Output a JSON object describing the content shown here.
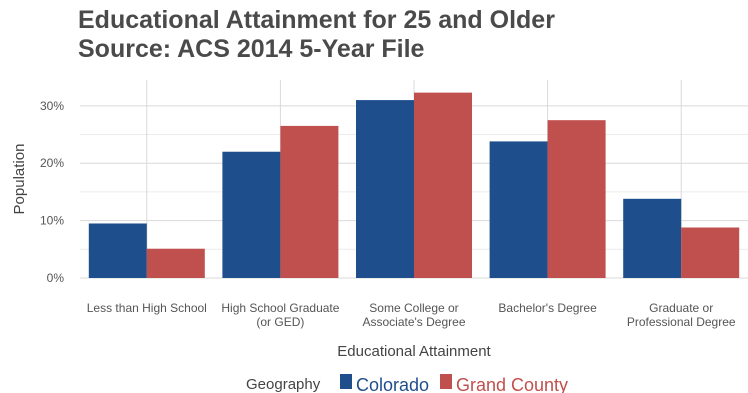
{
  "chart_data": {
    "type": "bar",
    "title": "Educational Attainment for 25 and Older",
    "subtitle": "Source: ACS 2014 5-Year File",
    "xlabel": "Educational Attainment",
    "ylabel": "Population",
    "ylim": [
      0,
      0.345
    ],
    "yticks": [
      {
        "value": 0,
        "label": "0%"
      },
      {
        "value": 0.1,
        "label": "10%"
      },
      {
        "value": 0.2,
        "label": "20%"
      },
      {
        "value": 0.3,
        "label": "30%"
      }
    ],
    "categories": [
      [
        "Less than High School"
      ],
      [
        "High School Graduate",
        "(or GED)"
      ],
      [
        "Some College or",
        "Associate's Degree"
      ],
      [
        "Bachelor's Degree"
      ],
      [
        "Graduate or",
        "Professional Degree"
      ]
    ],
    "series": [
      {
        "name": "Colorado",
        "color": "#1f4e8c",
        "values": [
          0.095,
          0.22,
          0.31,
          0.238,
          0.138
        ]
      },
      {
        "name": "Grand County",
        "color": "#c0504d",
        "values": [
          0.051,
          0.265,
          0.323,
          0.275,
          0.088
        ]
      }
    ],
    "legend": {
      "title": "Geography",
      "position": "bottom"
    },
    "grid": true
  }
}
